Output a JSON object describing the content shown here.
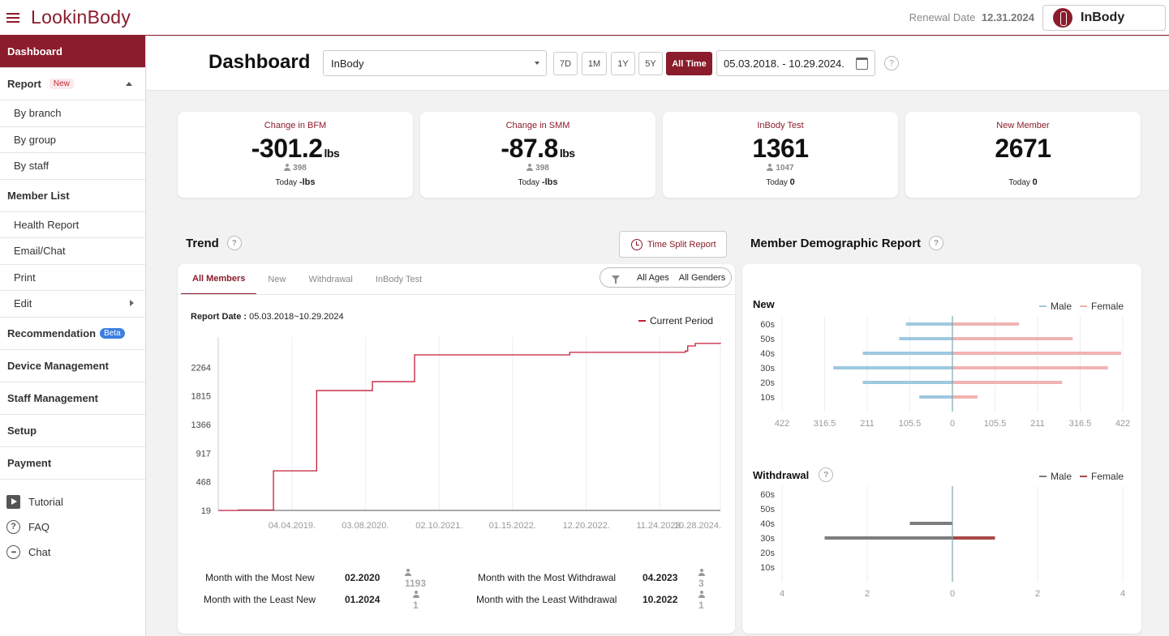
{
  "app": {
    "logo": "LookinBody",
    "renewal_label": "Renewal Date",
    "renewal_date": "12.31.2024",
    "brand_button": "InBody",
    "brand_color": "#8a1c2b"
  },
  "sidebar": {
    "dashboard": "Dashboard",
    "report": "Report",
    "report_badge": "New",
    "report_sub": [
      "By branch",
      "By group",
      "By staff"
    ],
    "member_list": "Member List",
    "member_sub": [
      "Health Report",
      "Email/Chat",
      "Print",
      "Edit"
    ],
    "recommendation": "Recommendation",
    "recommendation_badge": "Beta",
    "device_management": "Device Management",
    "staff_management": "Staff Management",
    "setup": "Setup",
    "payment": "Payment",
    "tools": [
      {
        "label": "Tutorial",
        "icon": "play-icon"
      },
      {
        "label": "FAQ",
        "icon": "question-icon"
      },
      {
        "label": "Chat",
        "icon": "chat-icon"
      }
    ]
  },
  "header": {
    "title": "Dashboard",
    "device_select": "InBody",
    "ranges": [
      "7D",
      "1M",
      "1Y",
      "5Y",
      "All Time"
    ],
    "active_range": "All Time",
    "date_range": "05.03.2018. - 10.29.2024.",
    "help": "?"
  },
  "cards": [
    {
      "label": "Change in BFM",
      "value": "-301.2",
      "unit": "lbs",
      "count": "398",
      "today_label": "Today",
      "today_value": "-lbs"
    },
    {
      "label": "Change in SMM",
      "value": "-87.8",
      "unit": "lbs",
      "count": "398",
      "today_label": "Today",
      "today_value": "-lbs"
    },
    {
      "label": "InBody Test",
      "value": "1361",
      "unit": "",
      "count": "1047",
      "today_label": "Today",
      "today_value": "0"
    },
    {
      "label": "New Member",
      "value": "2671",
      "unit": "",
      "count": "",
      "today_label": "Today",
      "today_value": "0"
    }
  ],
  "trend": {
    "title": "Trend",
    "time_split_button": "Time Split Report",
    "tabs": [
      "All Members",
      "New",
      "Withdrawal",
      "InBody Test"
    ],
    "filter_ages": "All Ages",
    "filter_genders": "All Genders",
    "report_date_label": "Report Date :",
    "report_date_value": "05.03.2018~10.29.2024",
    "legend": "Current Period",
    "stats": [
      {
        "label": "Month with the Most New",
        "date": "02.2020",
        "count": "1193"
      },
      {
        "label": "Month with the Least New",
        "date": "01.2024",
        "count": "1"
      },
      {
        "label": "Month with the Most Withdrawal",
        "date": "04.2023",
        "count": "3"
      },
      {
        "label": "Month with the Least Withdrawal",
        "date": "10.2022",
        "count": "1"
      }
    ]
  },
  "demographic": {
    "title": "Member Demographic Report",
    "new_title": "New",
    "withdrawal_title": "Withdrawal",
    "male": "Male",
    "female": "Female",
    "new_male_color": "#9ec8e0",
    "new_female_color": "#f0b3b3",
    "wd_male_color": "#7d7d7d",
    "wd_female_color": "#a84848"
  },
  "chart_data": [
    {
      "type": "line",
      "title": "Trend - All Members",
      "series": [
        {
          "name": "Current Period",
          "color": "#c41e3a",
          "points": [
            [
              0,
              19
            ],
            [
              0.04,
              25
            ],
            [
              0.11,
              40
            ],
            [
              0.11,
              640
            ],
            [
              0.196,
              700
            ],
            [
              0.196,
              1900
            ],
            [
              0.307,
              1950
            ],
            [
              0.307,
              2040
            ],
            [
              0.391,
              2050
            ],
            [
              0.391,
              2460
            ],
            [
              0.7,
              2500
            ],
            [
              0.93,
              2520
            ],
            [
              0.935,
              2600
            ],
            [
              0.95,
              2640
            ],
            [
              1.0,
              2650
            ]
          ]
        }
      ],
      "yticks": [
        "19",
        "468",
        "917",
        "1366",
        "1815",
        "2264"
      ],
      "ytick_values": [
        19,
        468,
        917,
        1366,
        1815,
        2264
      ],
      "xticks": [
        "04.04.2019.",
        "03.08.2020.",
        "02.10.2021.",
        "01.15.2022.",
        "12.20.2022.",
        "11.24.2023.",
        "10.28.2024."
      ],
      "xtick_positions": [
        0.147,
        0.293,
        0.44,
        0.586,
        0.733,
        0.879,
        1.0
      ],
      "ylim": [
        19,
        2740
      ]
    },
    {
      "type": "bar",
      "title": "New",
      "orientation": "horizontal-diverging",
      "categories": [
        "60s",
        "50s",
        "40s",
        "30s",
        "20s",
        "10s"
      ],
      "series": [
        {
          "name": "Male",
          "values": [
            115,
            132,
            222,
            295,
            222,
            82
          ]
        },
        {
          "name": "Female",
          "values": [
            165,
            298,
            418,
            385,
            272,
            62
          ]
        }
      ],
      "xticks": [
        "422",
        "316.5",
        "211",
        "105.5",
        "0",
        "105.5",
        "211",
        "316.5",
        "422"
      ],
      "xlim": [
        -422,
        422
      ]
    },
    {
      "type": "bar",
      "title": "Withdrawal",
      "orientation": "horizontal-diverging",
      "categories": [
        "60s",
        "50s",
        "40s",
        "30s",
        "20s",
        "10s"
      ],
      "series": [
        {
          "name": "Male",
          "values": [
            0,
            0,
            1,
            3,
            0,
            0
          ]
        },
        {
          "name": "Female",
          "values": [
            0,
            0,
            0,
            1,
            0,
            0
          ]
        }
      ],
      "xticks": [
        "4",
        "2",
        "0",
        "2",
        "4"
      ],
      "xlim": [
        -4,
        4
      ]
    }
  ]
}
